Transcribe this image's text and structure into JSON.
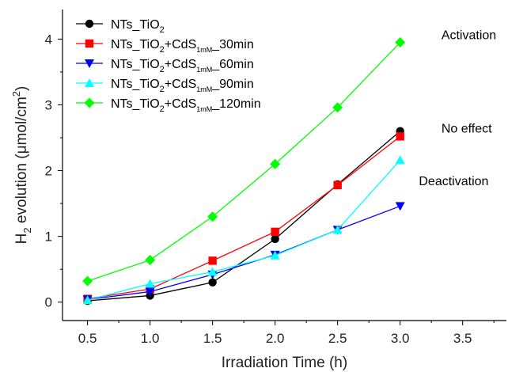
{
  "chart_data": {
    "type": "line",
    "x": [
      0.5,
      1.0,
      1.5,
      2.0,
      2.5,
      3.0
    ],
    "xlim": [
      0.3,
      3.85
    ],
    "ylim": [
      -0.28,
      4.45
    ],
    "x_ticks": [
      "0.5",
      "1.0",
      "1.5",
      "2.0",
      "2.5",
      "3.0",
      "3.5"
    ],
    "y_ticks": [
      "0",
      "1",
      "2",
      "3",
      "4"
    ],
    "xlabel": "Irradiation Time (h)",
    "ylabel": "H2 evolution (μmol/cm2)",
    "ylabel_parts": {
      "pre": "H",
      "sub": "2",
      "mid": " evolution (μmol/cm",
      "sup": "2",
      "post": ")"
    },
    "grid": false,
    "legend_position": "top-left",
    "series": [
      {
        "name": "NTs_TiO2",
        "label": {
          "pre": "NTs_TiO",
          "sub1": "2",
          "mid": "",
          "sub2": "",
          "post": ""
        },
        "color": "#000000",
        "marker": "circle",
        "values": [
          0.02,
          0.1,
          0.3,
          0.96,
          1.79,
          2.6
        ]
      },
      {
        "name": "NTs_TiO2+CdS1mM_30min",
        "label": {
          "pre": "NTs_TiO",
          "sub1": "2",
          "mid": "+CdS",
          "sub2": "1mM",
          "post": "_30min"
        },
        "color": "#ff0000",
        "marker": "square",
        "values": [
          0.05,
          0.2,
          0.63,
          1.07,
          1.78,
          2.52
        ]
      },
      {
        "name": "NTs_TiO2+CdS1mM_60min",
        "label": {
          "pre": "NTs_TiO",
          "sub1": "2",
          "mid": "+CdS",
          "sub2": "1mM",
          "post": "_60min"
        },
        "color": "#0000ff",
        "marker": "triangle-down",
        "values": [
          0.04,
          0.16,
          0.42,
          0.72,
          1.1,
          1.46
        ]
      },
      {
        "name": "NTs_TiO2+CdS1mM_90min",
        "label": {
          "pre": "NTs_TiO",
          "sub1": "2",
          "mid": "+CdS",
          "sub2": "1mM",
          "post": "_90min"
        },
        "color": "#00ffff",
        "marker": "triangle-up",
        "values": [
          0.03,
          0.28,
          0.46,
          0.71,
          1.1,
          2.16
        ]
      },
      {
        "name": "NTs_TiO2+CdS1mM_120min",
        "label": {
          "pre": "NTs_TiO",
          "sub1": "2",
          "mid": "+CdS",
          "sub2": "1mM",
          "post": "_120min"
        },
        "color": "#00ff00",
        "marker": "diamond",
        "values": [
          0.32,
          0.64,
          1.3,
          2.1,
          2.96,
          3.95
        ]
      }
    ],
    "annotations": [
      {
        "text": "Activation",
        "x": 3.33,
        "y": 4.0
      },
      {
        "text": "No effect",
        "x": 3.33,
        "y": 2.58
      },
      {
        "text": "Deactivation",
        "x": 3.15,
        "y": 1.78
      }
    ]
  }
}
